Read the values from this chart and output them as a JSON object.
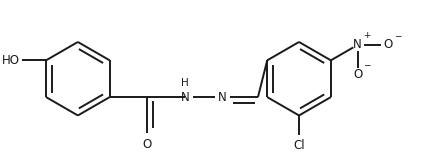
{
  "bg_color": "#ffffff",
  "line_color": "#1a1a1a",
  "line_width": 1.4,
  "font_size": 8.5,
  "fig_width": 4.46,
  "fig_height": 1.58,
  "dpi": 100,
  "xlim": [
    0.0,
    10.0
  ],
  "ylim": [
    0.0,
    3.5
  ]
}
